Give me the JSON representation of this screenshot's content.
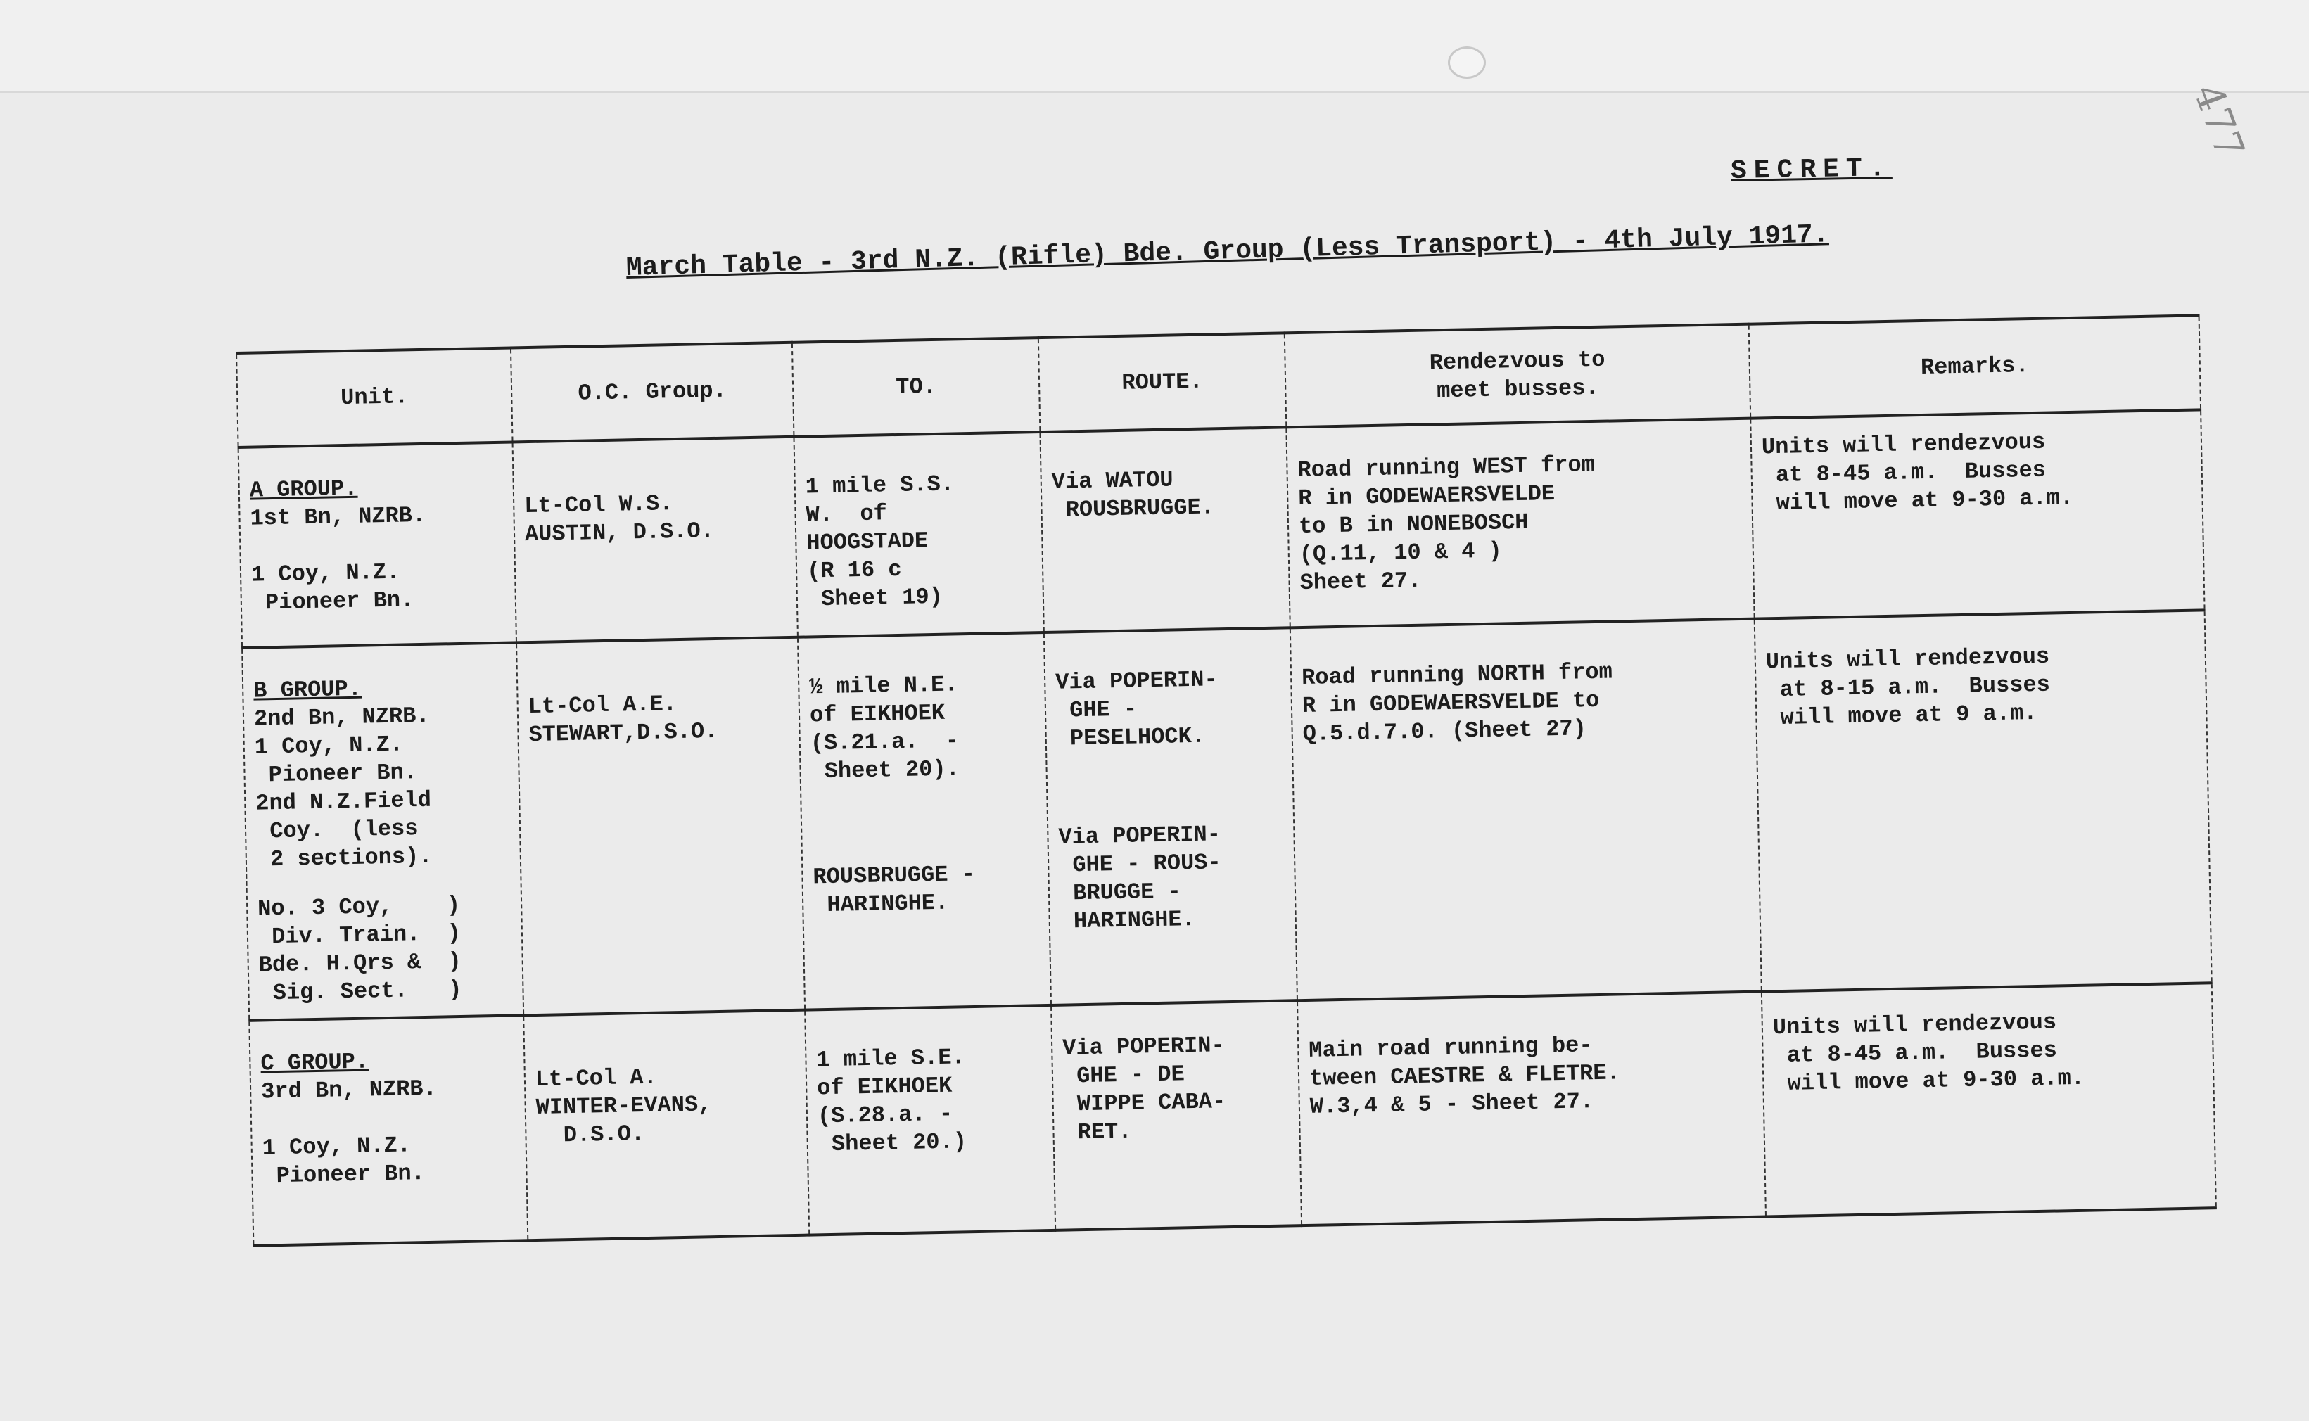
{
  "document": {
    "archive_number": "477",
    "classification": "SECRET.",
    "title": "March Table - 3rd N.Z. (Rifle) Bde. Group (Less Transport) - 4th July 1917."
  },
  "table": {
    "headers": [
      "Unit.",
      "O.C. Group.",
      "TO.",
      "ROUTE.",
      "Rendezvous to\nmeet busses.",
      "Remarks."
    ],
    "rows": [
      {
        "group": "A GROUP.",
        "unit": "1st Bn, NZRB.\n\n1 Coy, N.Z.\n Pioneer Bn.",
        "oc": "Lt-Col W.S.\nAUSTIN, D.S.O.",
        "to": "1 mile S.S.\nW.  of\nHOOGSTADE\n(R 16 c\n Sheet 19)",
        "route": "Via WATOU\n ROUSBRUGGE.",
        "rendezvous": "Road running WEST from\nR in GODEWAERSVELDE\nto B in NONEBOSCH\n(Q.11, 10 & 4 )\nSheet 27.",
        "remarks": "Units will rendezvous\n at 8-45 a.m.  Busses\n will move at 9-30 a.m."
      },
      {
        "group": "B GROUP.",
        "unit": "2nd Bn, NZRB.\n1 Coy, N.Z.\n Pioneer Bn.\n2nd N.Z.Field\n Coy.  (less\n 2 sections).",
        "unit2": "No. 3 Coy,    )\n Div. Train.  )\nBde. H.Qrs &  )\n Sig. Sect.   )",
        "oc": "Lt-Col A.E.\nSTEWART,D.S.O.",
        "to": "½ mile N.E.\nof EIKHOEK\n(S.21.a.  -\n Sheet 20).",
        "to2": "ROUSBRUGGE -\n HARINGHE.",
        "route": "Via POPERIN-\n GHE -\n PESELHOCK.",
        "route2": "Via POPERIN-\n GHE - ROUS-\n BRUGGE -\n HARINGHE.",
        "rendezvous": "Road running NORTH from\nR in GODEWAERSVELDE to\nQ.5.d.7.0. (Sheet 27)",
        "remarks": "Units will rendezvous\n at 8-15 a.m.  Busses\n will move at 9 a.m."
      },
      {
        "group": "C GROUP.",
        "unit": "3rd Bn, NZRB.\n\n1 Coy, N.Z.\n Pioneer Bn.",
        "oc": "Lt-Col A.\nWINTER-EVANS,\n  D.S.O.",
        "to": "1 mile S.E.\nof EIKHOEK\n(S.28.a. -\n Sheet 20.)",
        "route": "Via POPERIN-\n GHE - DE\n WIPPE CABA-\n RET.",
        "rendezvous": "Main road running be-\ntween CAESTRE & FLETRE.\nW.3,4 & 5 - Sheet 27.",
        "remarks": "Units will rendezvous\n at 8-45 a.m.  Busses\n will move at 9-30 a.m."
      }
    ]
  }
}
